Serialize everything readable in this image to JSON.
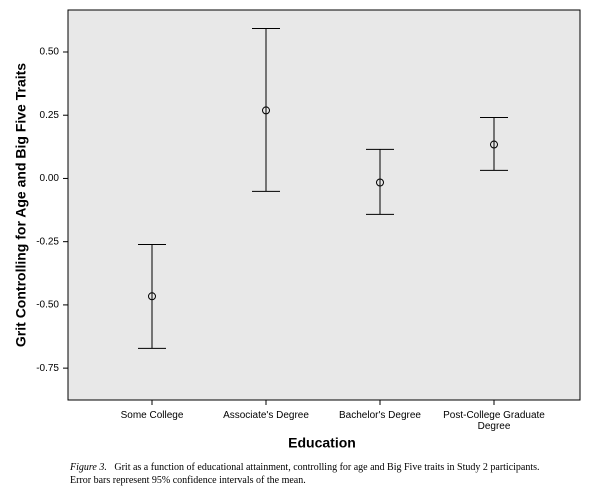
{
  "chart_data": {
    "type": "errorbar",
    "y_label": "Grit Controlling for Age and Big Five Traits",
    "x_label": "Education",
    "categories": [
      "Some College",
      "Associate's Degree",
      "Bachelor's Degree",
      "Post-College Graduate Degree"
    ],
    "values": [
      -0.466,
      0.269,
      -0.016,
      0.134
    ],
    "ci_lower": [
      -0.672,
      -0.051,
      -0.142,
      0.032
    ],
    "ci_upper": [
      -0.261,
      0.593,
      0.115,
      0.241
    ],
    "color": "#000000",
    "background": "#e8e8e8",
    "ylim": [
      -0.876,
      0.666
    ],
    "yticks": [
      {
        "value": 0.5,
        "label": "0.50"
      },
      0.25,
      {
        "value": 0,
        "label": "0.00"
      },
      -0.25,
      {
        "value": -0.5,
        "label": "-0.50"
      },
      -0.75
    ],
    "grid": false
  },
  "caption": {
    "label": "Figure 3.",
    "text": "Grit as a function of educational attainment, controlling for age and Big Five traits in Study 2 participants. Error bars represent 95% confidence intervals of the mean."
  }
}
